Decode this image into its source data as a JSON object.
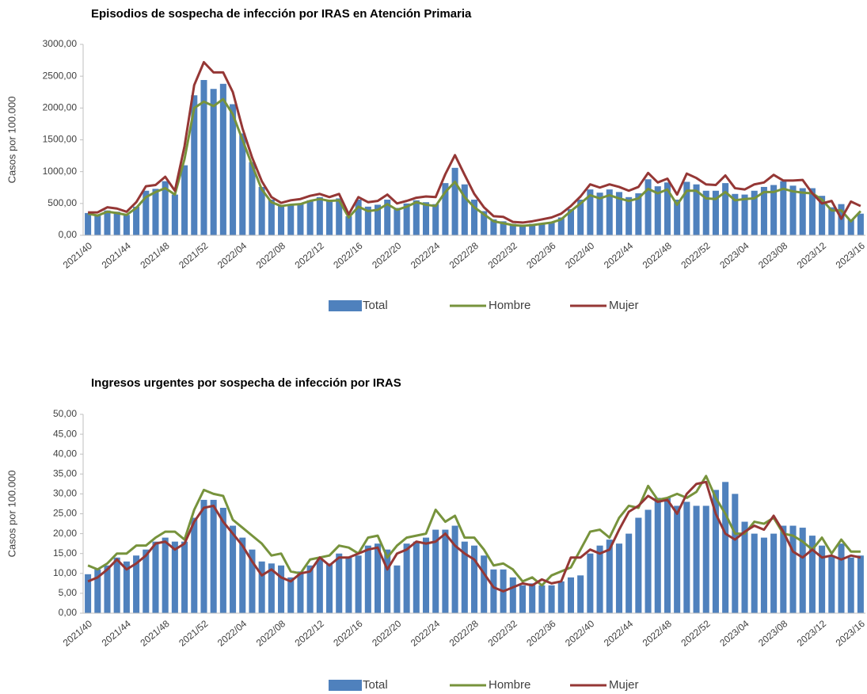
{
  "chart_data": [
    {
      "type": "combo",
      "title": "Episodios de sospecha de infección por IRAS en Atención Primaria",
      "y_label": "Casos por 100.000",
      "categories": [
        "2021/40",
        null,
        null,
        null,
        "2021/44",
        null,
        null,
        null,
        "2021/48",
        null,
        null,
        null,
        "2021/52",
        null,
        null,
        null,
        "2022/04",
        null,
        null,
        null,
        "2022/08",
        null,
        null,
        null,
        "2022/12",
        null,
        null,
        null,
        "2022/16",
        null,
        null,
        null,
        "2022/20",
        null,
        null,
        null,
        "2022/24",
        null,
        null,
        null,
        "2022/28",
        null,
        null,
        null,
        "2022/32",
        null,
        null,
        null,
        "2022/36",
        null,
        null,
        null,
        "2022/40",
        null,
        null,
        null,
        "2022/44",
        null,
        null,
        null,
        "2022/48",
        null,
        null,
        null,
        "2022/52",
        null,
        null,
        null,
        "2023/04",
        null,
        null,
        null,
        "2023/08",
        null,
        null,
        null,
        "2023/12",
        null,
        null,
        null,
        "2023/16"
      ],
      "ylim": [
        0,
        3000
      ],
      "yticks": [
        {
          "value": 0,
          "label": "0,00"
        },
        {
          "value": 500,
          "label": "500,00"
        },
        {
          "value": 1000,
          "label": "1000,00"
        },
        {
          "value": 1500,
          "label": "1500,00"
        },
        {
          "value": 2000,
          "label": "2000,00"
        },
        {
          "value": 2500,
          "label": "2500,00"
        },
        {
          "value": 3000,
          "label": "3000,00"
        }
      ],
      "legend": "bottom",
      "series": [
        {
          "name": "Total",
          "type": "bar",
          "color": "#4f81bd",
          "values": [
            350,
            310,
            390,
            370,
            320,
            450,
            700,
            730,
            850,
            640,
            1100,
            2200,
            2440,
            2300,
            2380,
            2060,
            1600,
            1150,
            760,
            560,
            460,
            470,
            500,
            550,
            600,
            560,
            580,
            300,
            560,
            450,
            480,
            560,
            430,
            500,
            550,
            520,
            490,
            820,
            1060,
            800,
            560,
            380,
            250,
            220,
            180,
            160,
            180,
            190,
            210,
            280,
            410,
            560,
            720,
            670,
            720,
            680,
            600,
            660,
            880,
            770,
            830,
            560,
            840,
            800,
            700,
            700,
            820,
            650,
            640,
            700,
            760,
            790,
            850,
            780,
            740,
            740,
            620,
            440,
            490,
            250,
            340
          ]
        },
        {
          "name": "Hombre",
          "type": "line",
          "color": "#77933c",
          "values": [
            340,
            310,
            370,
            350,
            320,
            430,
            600,
            680,
            740,
            640,
            1200,
            2000,
            2100,
            2030,
            2140,
            1900,
            1500,
            1100,
            720,
            520,
            460,
            480,
            490,
            540,
            570,
            540,
            550,
            280,
            450,
            380,
            400,
            490,
            400,
            450,
            520,
            480,
            460,
            680,
            840,
            600,
            440,
            330,
            220,
            190,
            160,
            150,
            160,
            180,
            200,
            250,
            380,
            500,
            630,
            580,
            630,
            580,
            540,
            580,
            730,
            660,
            720,
            480,
            700,
            700,
            580,
            570,
            680,
            550,
            570,
            580,
            680,
            680,
            730,
            690,
            670,
            660,
            560,
            390,
            390,
            220,
            380
          ]
        },
        {
          "name": "Mujer",
          "type": "line",
          "color": "#953735",
          "values": [
            360,
            360,
            440,
            420,
            370,
            520,
            770,
            790,
            920,
            700,
            1400,
            2360,
            2720,
            2560,
            2560,
            2250,
            1680,
            1220,
            850,
            600,
            510,
            550,
            570,
            620,
            650,
            600,
            650,
            330,
            600,
            520,
            540,
            640,
            500,
            540,
            590,
            610,
            600,
            960,
            1260,
            950,
            650,
            440,
            300,
            290,
            210,
            200,
            220,
            250,
            280,
            340,
            460,
            610,
            800,
            750,
            800,
            760,
            700,
            760,
            980,
            830,
            890,
            640,
            970,
            900,
            800,
            790,
            940,
            740,
            720,
            800,
            830,
            950,
            860,
            860,
            870,
            660,
            500,
            540,
            260,
            530,
            460
          ]
        }
      ]
    },
    {
      "type": "combo",
      "title": "Ingresos urgentes por sospecha de infección por IRAS",
      "y_label": "Casos por 100.000",
      "categories": [
        "2021/40",
        null,
        null,
        null,
        "2021/44",
        null,
        null,
        null,
        "2021/48",
        null,
        null,
        null,
        "2021/52",
        null,
        null,
        null,
        "2022/04",
        null,
        null,
        null,
        "2022/08",
        null,
        null,
        null,
        "2022/12",
        null,
        null,
        null,
        "2022/16",
        null,
        null,
        null,
        "2022/20",
        null,
        null,
        null,
        "2022/24",
        null,
        null,
        null,
        "2022/28",
        null,
        null,
        null,
        "2022/32",
        null,
        null,
        null,
        "2022/36",
        null,
        null,
        null,
        "2022/40",
        null,
        null,
        null,
        "2022/44",
        null,
        null,
        null,
        "2022/48",
        null,
        null,
        null,
        "2022/52",
        null,
        null,
        null,
        "2023/04",
        null,
        null,
        null,
        "2023/08",
        null,
        null,
        null,
        "2023/12",
        null,
        null,
        null,
        "2023/16"
      ],
      "ylim": [
        0,
        50
      ],
      "yticks": [
        {
          "value": 0,
          "label": "0,00"
        },
        {
          "value": 5,
          "label": "5,00"
        },
        {
          "value": 10,
          "label": "10,00"
        },
        {
          "value": 15,
          "label": "15,00"
        },
        {
          "value": 20,
          "label": "20,00"
        },
        {
          "value": 25,
          "label": "25,00"
        },
        {
          "value": 30,
          "label": "30,00"
        },
        {
          "value": 35,
          "label": "35,00"
        },
        {
          "value": 40,
          "label": "40,00"
        },
        {
          "value": 45,
          "label": "45,00"
        },
        {
          "value": 50,
          "label": "50,00"
        }
      ],
      "legend": "bottom",
      "series": [
        {
          "name": "Total",
          "type": "bar",
          "color": "#4f81bd",
          "values": [
            9.8,
            11,
            12,
            14,
            13,
            14.5,
            16,
            18,
            19,
            18,
            18,
            24,
            28.5,
            28.5,
            26.5,
            22,
            19,
            16,
            13,
            12.5,
            12,
            9,
            10.5,
            12,
            13.5,
            12.5,
            15,
            14,
            14.5,
            17,
            17.5,
            16,
            12,
            17.5,
            18,
            19,
            21,
            21,
            22,
            18,
            17,
            14.5,
            11,
            11,
            9,
            7,
            7.5,
            7,
            7,
            8,
            9,
            9.5,
            15,
            17,
            18.5,
            17.5,
            20,
            24,
            26,
            29,
            29,
            27,
            28,
            27,
            27,
            31,
            33,
            30,
            23,
            20,
            19,
            20,
            22,
            22,
            21.5,
            19.5,
            17,
            14.5,
            17.5,
            14,
            14.5
          ]
        },
        {
          "name": "Hombre",
          "type": "line",
          "color": "#77933c",
          "values": [
            12,
            11,
            12.5,
            15,
            15,
            17,
            17,
            19,
            20.5,
            20.5,
            18.5,
            26,
            31,
            30,
            29.5,
            23.5,
            21.5,
            19.5,
            17.5,
            14.5,
            15,
            10.5,
            10,
            13.5,
            14,
            14.5,
            17,
            16.5,
            15,
            19,
            19.5,
            14,
            17,
            19,
            19.5,
            20,
            26,
            23,
            24.5,
            19,
            19,
            16,
            12,
            12.5,
            11,
            8,
            9,
            7,
            9.5,
            10.5,
            11.5,
            16,
            20.5,
            21,
            19,
            24,
            27,
            26.5,
            32,
            28.5,
            29,
            30,
            29,
            30.5,
            34.5,
            29,
            25,
            20,
            20,
            23,
            22.5,
            24,
            20,
            19.5,
            18,
            16,
            19,
            15,
            18.5,
            15.5,
            15.5
          ]
        },
        {
          "name": "Mujer",
          "type": "line",
          "color": "#953735",
          "values": [
            8,
            9,
            11,
            13.5,
            11,
            12.5,
            14.5,
            17.5,
            18,
            16,
            17.5,
            23,
            26.5,
            27,
            23,
            20,
            17,
            13,
            9.5,
            11,
            9,
            8,
            10,
            10.5,
            14,
            12,
            14,
            14,
            15,
            16,
            16.5,
            11,
            15,
            16,
            18,
            17.5,
            18,
            20,
            17,
            15,
            13.5,
            10,
            6.5,
            5.5,
            6.5,
            7.5,
            7,
            8.5,
            7.5,
            8,
            14,
            14,
            16,
            15,
            16,
            21,
            25.5,
            27,
            29.5,
            28,
            28.5,
            25,
            30,
            32.5,
            33,
            25,
            20,
            18.5,
            20.5,
            22,
            21,
            24.5,
            20.5,
            15.5,
            14,
            16,
            14,
            14.5,
            13.5,
            14.5,
            14
          ]
        }
      ]
    }
  ]
}
